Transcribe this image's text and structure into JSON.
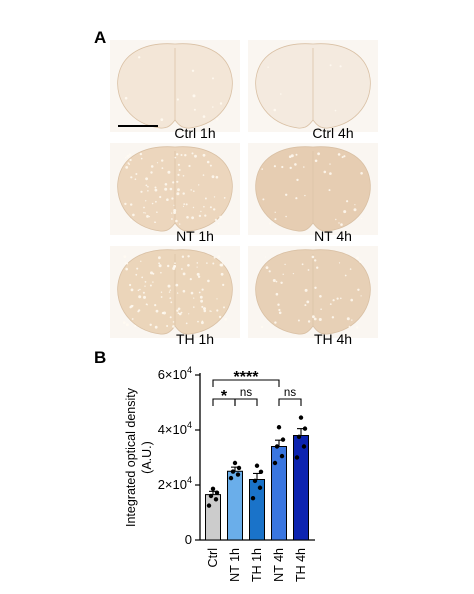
{
  "panel_a": {
    "letter": "A",
    "tiles": [
      {
        "label": "Ctrl 1h",
        "tone": "#f3e6d7",
        "speckle": 0.1
      },
      {
        "label": "Ctrl 4h",
        "tone": "#f4eadf",
        "speckle": 0.05
      },
      {
        "label": "NT 1h",
        "tone": "#ecd6bd",
        "speckle": 0.8
      },
      {
        "label": "NT 4h",
        "tone": "#e6cdb2",
        "speckle": 0.3
      },
      {
        "label": "TH 1h",
        "tone": "#ebd5ba",
        "speckle": 0.9
      },
      {
        "label": "TH 4h",
        "tone": "#e7d0b6",
        "speckle": 0.4
      }
    ]
  },
  "panel_b": {
    "letter": "B"
  },
  "chart_data": {
    "type": "bar",
    "ylabel": "Integrated optical density\n(A.U.)",
    "ylim": [
      0,
      60000
    ],
    "yticks": [
      {
        "value": 0,
        "base": "0",
        "exp": ""
      },
      {
        "value": 20000,
        "base": "2×10",
        "exp": "4"
      },
      {
        "value": 40000,
        "base": "4×10",
        "exp": "4"
      },
      {
        "value": 60000,
        "base": "6×10",
        "exp": "4"
      }
    ],
    "categories": [
      "Ctrl",
      "NT 1h",
      "TH 1h",
      "NT 4h",
      "TH 4h"
    ],
    "values": [
      16500,
      25000,
      22000,
      34000,
      38000
    ],
    "errors": [
      1200,
      1500,
      2200,
      2300,
      2500
    ],
    "colors": [
      "#cccccc",
      "#6aaeea",
      "#1a73c9",
      "#3a76e0",
      "#0d24b0"
    ],
    "points": [
      [
        12500,
        14800,
        16000,
        17200,
        18600
      ],
      [
        22500,
        23800,
        24900,
        26200,
        28000
      ],
      [
        15200,
        19000,
        21500,
        24800,
        27000
      ],
      [
        28000,
        30500,
        34000,
        36500,
        41000
      ],
      [
        30000,
        34000,
        37500,
        40500,
        44500
      ]
    ],
    "significance": [
      {
        "from": 0,
        "to": 3,
        "label": "****"
      },
      {
        "from": 0,
        "to": 1,
        "label": "*"
      },
      {
        "from": 1,
        "to": 2,
        "label": "ns"
      },
      {
        "from": 3,
        "to": 4,
        "label": "ns"
      }
    ]
  }
}
